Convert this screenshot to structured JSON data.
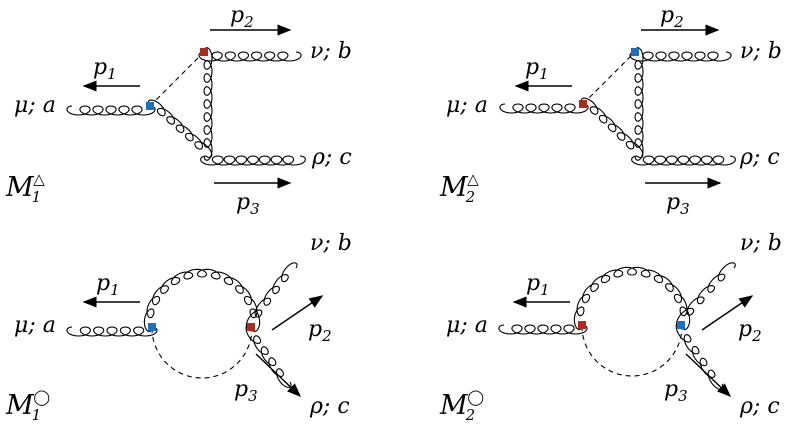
{
  "colors": {
    "blue_vertex": "#1f6fc0",
    "red_vertex": "#b02a1e",
    "ink": "#000000"
  },
  "labels": {
    "mu_a": "μ; a",
    "nu_b": "ν; b",
    "rho_c": "ρ; c",
    "p1": "p",
    "p1_sub": "1",
    "p2": "p",
    "p2_sub": "2",
    "p3": "p",
    "p3_sub": "3",
    "M": "M",
    "sub1": "1",
    "sub2": "2",
    "triangle_sup": "△",
    "circle_sup": "◯"
  }
}
